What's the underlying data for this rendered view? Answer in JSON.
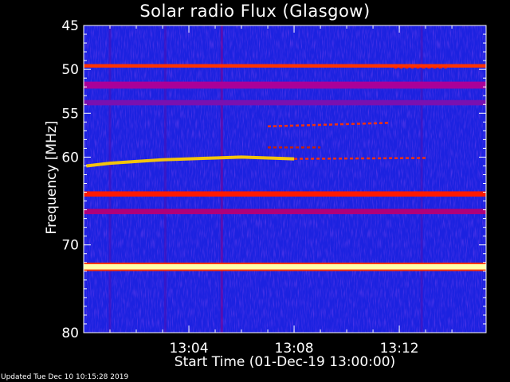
{
  "title": "Solar radio Flux (Glasgow)",
  "xlabel": "Start Time (01-Dec-19 13:00:00)",
  "ylabel": "Frequency [MHz]",
  "footer": "Updated Tue Dec 10 10:15:28 2019",
  "chart_data": {
    "type": "heatmap",
    "title": "Solar radio Flux (Glasgow)",
    "xlabel": "Start Time (01-Dec-19 13:00:00)",
    "ylabel": "Frequency [MHz]",
    "x_unit": "minutes after 13:00:00",
    "xlim": [
      0,
      15.3
    ],
    "ylim": [
      45,
      80
    ],
    "y_inverted": true,
    "x_ticks": [
      {
        "value": 4,
        "label": "13:04"
      },
      {
        "value": 8,
        "label": "13:08"
      },
      {
        "value": 12,
        "label": "13:12"
      }
    ],
    "y_ticks": [
      45,
      50,
      55,
      60,
      70,
      80
    ],
    "y_minor_ticks": [
      46,
      47,
      48,
      49,
      51,
      52,
      53,
      54,
      56,
      57,
      58,
      59,
      61,
      62,
      63,
      64,
      65,
      66,
      67,
      68,
      69,
      71,
      72,
      73,
      74,
      75,
      76,
      77,
      78,
      79
    ],
    "background_color": "#1c22e0",
    "colors": {
      "low": "#0000c8",
      "mid": "#cc0066",
      "high": "#ff2000",
      "peak": "#ffff66"
    },
    "bands": [
      {
        "freq": 49.6,
        "width": 0.4,
        "intensity": "mid-high",
        "color": "#ff3300",
        "x_range": [
          0,
          15.3
        ]
      },
      {
        "freq": 51.8,
        "width": 0.8,
        "intensity": "mid",
        "color": "#aa0099",
        "x_range": [
          0,
          15.3
        ]
      },
      {
        "freq": 53.8,
        "width": 0.6,
        "intensity": "low-mid",
        "color": "#7a10b0",
        "x_range": [
          0,
          15.3
        ]
      },
      {
        "freq": 64.2,
        "width": 0.6,
        "intensity": "high",
        "color": "#ff1a00",
        "x_range": [
          0,
          15.3
        ]
      },
      {
        "freq": 66.2,
        "width": 0.6,
        "intensity": "mid",
        "color": "#b0007a",
        "x_range": [
          0,
          15.3
        ]
      },
      {
        "freq": 72.5,
        "width": 0.6,
        "intensity": "peak",
        "color": "#ffffaa",
        "x_range": [
          0,
          15.3
        ]
      }
    ],
    "emission_features": [
      {
        "name": "drifting tone",
        "color": "#ffcc00",
        "points": [
          [
            0.1,
            61.0
          ],
          [
            1.0,
            60.7
          ],
          [
            2.0,
            60.5
          ],
          [
            3.0,
            60.3
          ],
          [
            4.0,
            60.2
          ],
          [
            5.0,
            60.1
          ],
          [
            6.0,
            60.0
          ],
          [
            7.0,
            60.1
          ],
          [
            8.0,
            60.2
          ]
        ]
      },
      {
        "name": "weak tone",
        "color": "#ff3300",
        "points": [
          [
            8.0,
            60.2
          ],
          [
            13.0,
            60.1
          ]
        ]
      },
      {
        "name": "weak tone",
        "color": "#ff3300",
        "points": [
          [
            7.0,
            56.5
          ],
          [
            11.6,
            56.1
          ]
        ]
      },
      {
        "name": "weak tone",
        "color": "#cc2200",
        "points": [
          [
            7.0,
            58.9
          ],
          [
            9.0,
            58.9
          ]
        ]
      },
      {
        "name": "burst segment",
        "color": "#ff2200",
        "points": [
          [
            11.8,
            49.8
          ],
          [
            13.8,
            49.8
          ]
        ]
      }
    ],
    "vertical_features": [
      {
        "x": 5.25,
        "intensity": "mid",
        "color": "#800090"
      },
      {
        "x": 1.0,
        "intensity": "low-mid",
        "color": "#4a10b8"
      },
      {
        "x": 3.1,
        "intensity": "low-mid",
        "color": "#4a10b8"
      },
      {
        "x": 12.85,
        "intensity": "low-mid",
        "color": "#4a10b8"
      }
    ],
    "grid": false,
    "legend": "none"
  }
}
